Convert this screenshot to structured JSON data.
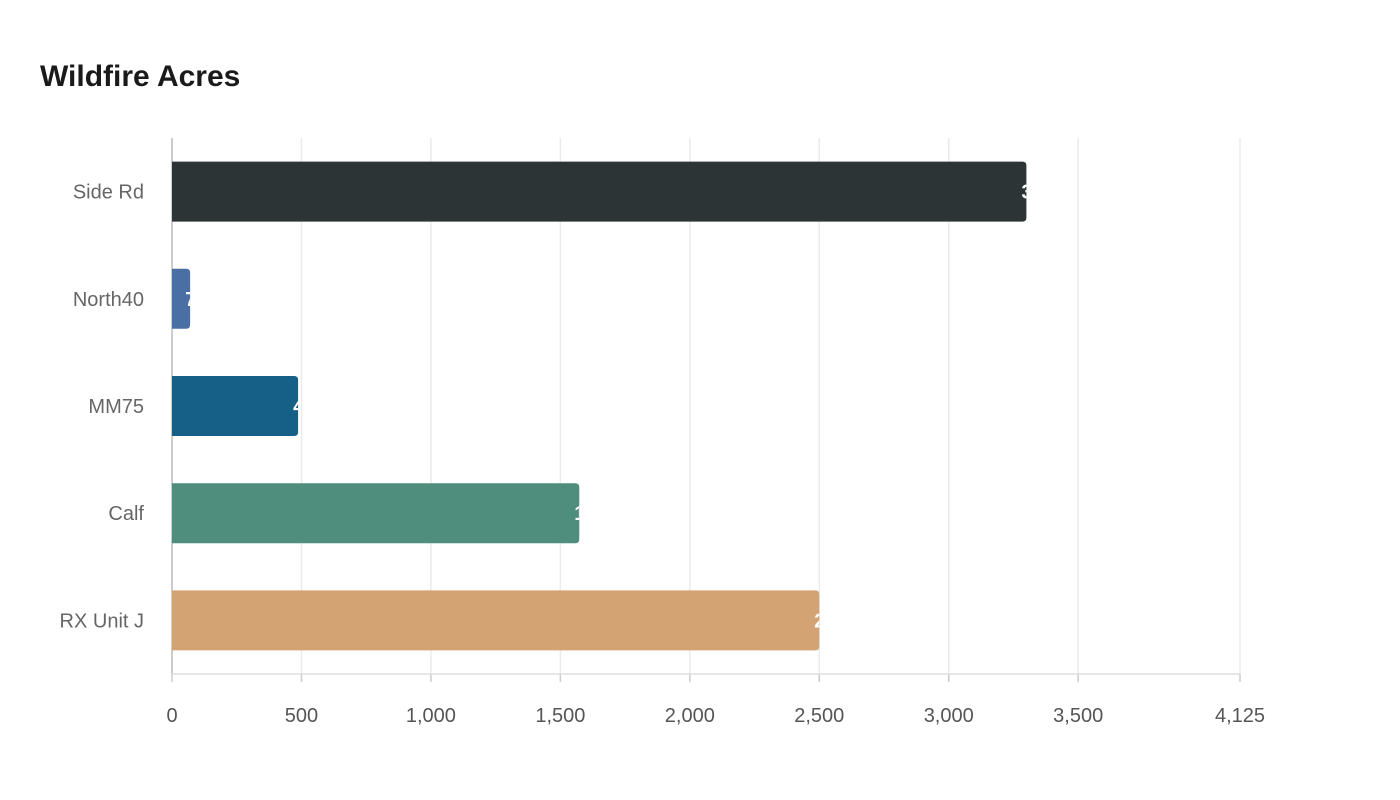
{
  "chart_data": {
    "type": "bar",
    "orientation": "horizontal",
    "title": "Wildfire Acres",
    "categories": [
      "Side Rd",
      "North40",
      "MM75",
      "Calf",
      "RX Unit J"
    ],
    "values": [
      3300,
      70,
      487,
      1573,
      2500
    ],
    "colors": [
      "#2d3436",
      "#4a6fa5",
      "#166088",
      "#4f8d7c",
      "#d4a373"
    ],
    "xlim": [
      0,
      4125
    ],
    "xticks": [
      0,
      500,
      1000,
      1500,
      2000,
      2500,
      3000,
      3500,
      4125
    ],
    "xtick_labels": [
      "0",
      "500",
      "1,000",
      "1,500",
      "2,000",
      "2,500",
      "3,000",
      "3,500",
      "4,125"
    ],
    "grid": true,
    "data_labels": true
  }
}
